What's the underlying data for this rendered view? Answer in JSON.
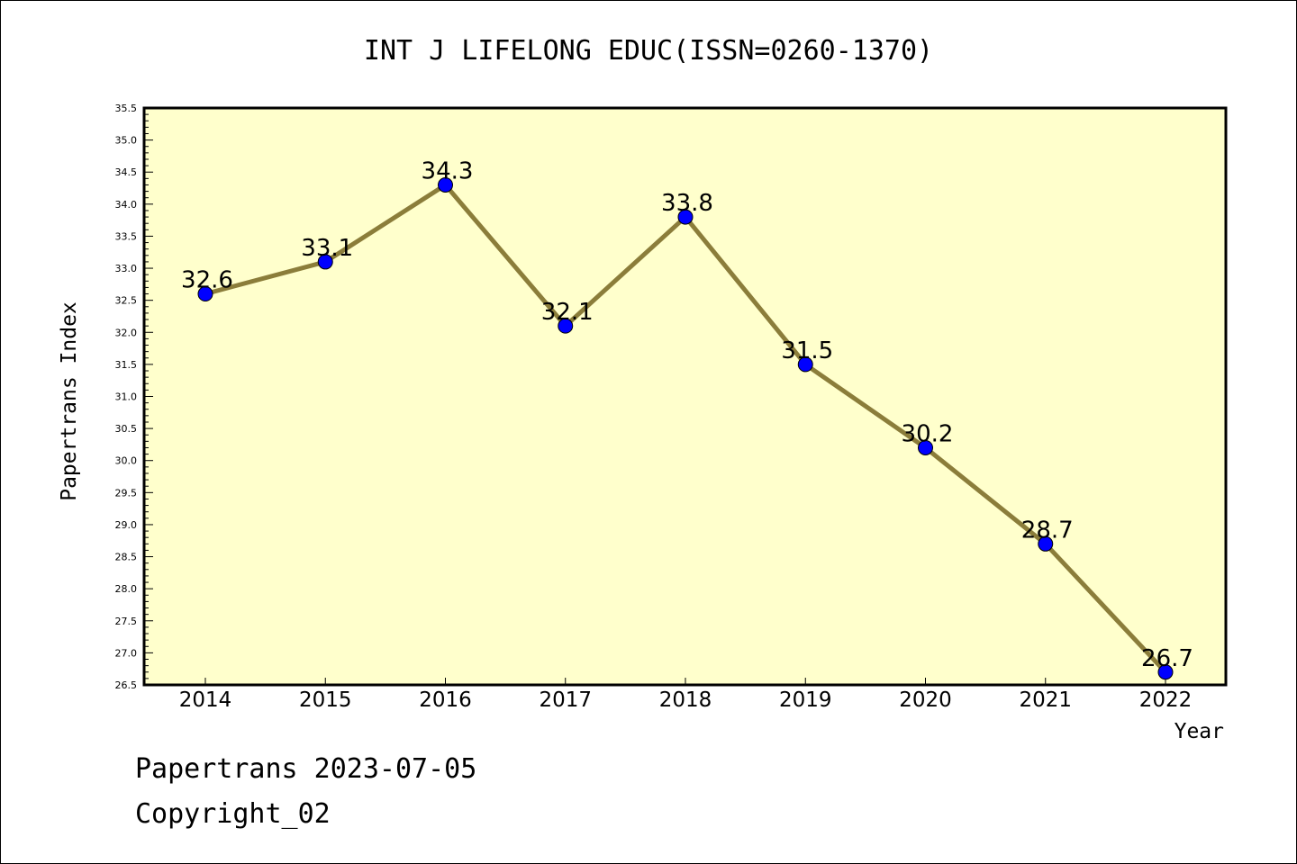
{
  "chart_data": {
    "type": "line",
    "title": "INT J LIFELONG EDUC(ISSN=0260-1370)",
    "xlabel": "Year",
    "ylabel": "Papertrans Index",
    "x": [
      "2014",
      "2015",
      "2016",
      "2017",
      "2018",
      "2019",
      "2020",
      "2021",
      "2022"
    ],
    "series": [
      {
        "values": [
          32.6,
          33.1,
          34.3,
          32.1,
          33.8,
          31.5,
          30.2,
          28.7,
          26.7
        ]
      }
    ],
    "data_labels": [
      "32.6",
      "33.1",
      "34.3",
      "32.1",
      "33.8",
      "31.5",
      "30.2",
      "28.7",
      "26.7"
    ],
    "ylim": [
      26.5,
      35.5
    ],
    "yticks": [
      "26.5",
      "27.0",
      "27.5",
      "28.0",
      "28.5",
      "29.0",
      "29.5",
      "30.0",
      "30.5",
      "31.0",
      "31.5",
      "32.0",
      "32.5",
      "33.0",
      "33.5",
      "34.0",
      "34.5",
      "35.0",
      "35.5"
    ],
    "grid": false,
    "colors": {
      "plot_bg": "#ffffcc",
      "line": "#8b7d3a",
      "marker": "#0000ff"
    }
  },
  "footer": {
    "line1": "Papertrans 2023-07-05",
    "line2": "Copyright_02"
  }
}
